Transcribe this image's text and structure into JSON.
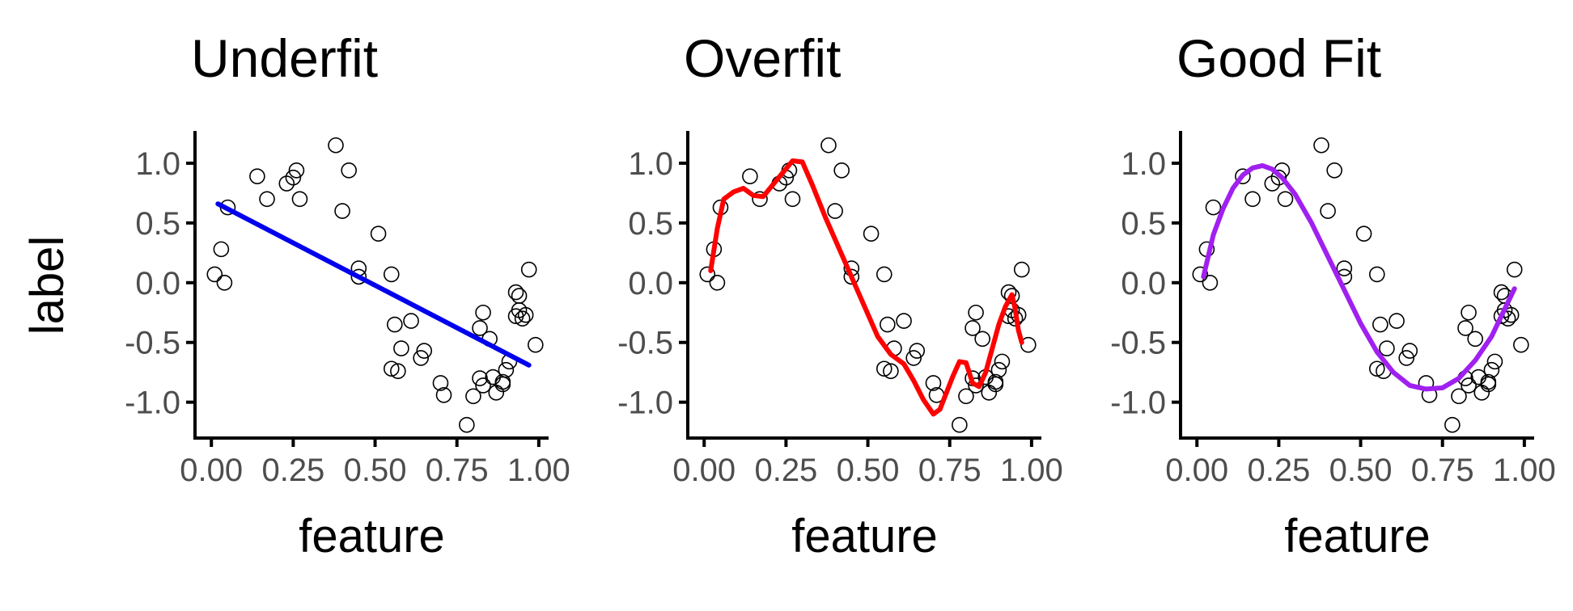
{
  "chart_data": [
    {
      "type": "scatter",
      "title": "Underfit",
      "xlabel": "feature",
      "ylabel": "label",
      "xlim": [
        -0.05,
        1.03
      ],
      "ylim": [
        -1.3,
        1.27
      ],
      "xticks": [
        0,
        0.25,
        0.5,
        0.75,
        1
      ],
      "xtick_labels": [
        "0.00",
        "0.25",
        "0.50",
        "0.75",
        "1.00"
      ],
      "yticks": [
        -1,
        -0.5,
        0,
        0.5,
        1
      ],
      "ytick_labels": [
        "-1.0",
        "-0.5",
        "0.0",
        "0.5",
        "1.0"
      ],
      "grid": false,
      "points": {
        "x": [
          0.01,
          0.03,
          0.04,
          0.05,
          0.14,
          0.17,
          0.23,
          0.25,
          0.26,
          0.27,
          0.38,
          0.4,
          0.42,
          0.45,
          0.45,
          0.51,
          0.55,
          0.55,
          0.56,
          0.57,
          0.58,
          0.61,
          0.64,
          0.65,
          0.7,
          0.71,
          0.78,
          0.8,
          0.82,
          0.82,
          0.83,
          0.83,
          0.85,
          0.86,
          0.87,
          0.89,
          0.89,
          0.9,
          0.91,
          0.93,
          0.93,
          0.94,
          0.94,
          0.95,
          0.96,
          0.97,
          0.99
        ],
        "y": [
          0.07,
          0.28,
          0.0,
          0.63,
          0.89,
          0.7,
          0.83,
          0.88,
          0.94,
          0.7,
          1.15,
          0.6,
          0.94,
          0.05,
          0.12,
          0.41,
          0.07,
          -0.72,
          -0.35,
          -0.74,
          -0.55,
          -0.32,
          -0.63,
          -0.57,
          -0.84,
          -0.94,
          -1.19,
          -0.95,
          -0.38,
          -0.8,
          -0.86,
          -0.25,
          -0.47,
          -0.79,
          -0.92,
          -0.85,
          -0.83,
          -0.73,
          -0.66,
          -0.08,
          -0.28,
          -0.11,
          -0.23,
          -0.3,
          -0.27,
          0.11,
          -0.52
        ]
      },
      "fit": {
        "color": "#0000ee",
        "x": [
          0.02,
          0.97
        ],
        "y": [
          0.66,
          -0.69
        ]
      }
    },
    {
      "type": "scatter",
      "title": "Overfit",
      "xlabel": "feature",
      "ylabel": "",
      "xlim": [
        -0.05,
        1.03
      ],
      "ylim": [
        -1.3,
        1.27
      ],
      "xticks": [
        0,
        0.25,
        0.5,
        0.75,
        1
      ],
      "xtick_labels": [
        "0.00",
        "0.25",
        "0.50",
        "0.75",
        "1.00"
      ],
      "yticks": [
        -1,
        -0.5,
        0,
        0.5,
        1
      ],
      "ytick_labels": [
        "-1.0",
        "-0.5",
        "0.0",
        "0.5",
        "1.0"
      ],
      "grid": false,
      "points": {
        "x": [
          0.01,
          0.03,
          0.04,
          0.05,
          0.14,
          0.17,
          0.23,
          0.25,
          0.26,
          0.27,
          0.38,
          0.4,
          0.42,
          0.45,
          0.45,
          0.51,
          0.55,
          0.55,
          0.56,
          0.57,
          0.58,
          0.61,
          0.64,
          0.65,
          0.7,
          0.71,
          0.78,
          0.8,
          0.82,
          0.82,
          0.83,
          0.83,
          0.85,
          0.86,
          0.87,
          0.89,
          0.89,
          0.9,
          0.91,
          0.93,
          0.93,
          0.94,
          0.94,
          0.95,
          0.96,
          0.97,
          0.99
        ],
        "y": [
          0.07,
          0.28,
          0.0,
          0.63,
          0.89,
          0.7,
          0.83,
          0.88,
          0.94,
          0.7,
          1.15,
          0.6,
          0.94,
          0.05,
          0.12,
          0.41,
          0.07,
          -0.72,
          -0.35,
          -0.74,
          -0.55,
          -0.32,
          -0.63,
          -0.57,
          -0.84,
          -0.94,
          -1.19,
          -0.95,
          -0.38,
          -0.8,
          -0.86,
          -0.25,
          -0.47,
          -0.79,
          -0.92,
          -0.85,
          -0.83,
          -0.73,
          -0.66,
          -0.08,
          -0.28,
          -0.11,
          -0.23,
          -0.3,
          -0.27,
          0.11,
          -0.52
        ]
      },
      "fit": {
        "color": "#ff0000",
        "x": [
          0.02,
          0.04,
          0.06,
          0.09,
          0.12,
          0.15,
          0.18,
          0.21,
          0.24,
          0.27,
          0.3,
          0.33,
          0.37,
          0.41,
          0.45,
          0.49,
          0.53,
          0.57,
          0.61,
          0.64,
          0.67,
          0.7,
          0.72,
          0.74,
          0.76,
          0.78,
          0.8,
          0.82,
          0.84,
          0.86,
          0.88,
          0.9,
          0.92,
          0.94,
          0.95,
          0.96,
          0.97
        ],
        "y": [
          0.1,
          0.45,
          0.7,
          0.76,
          0.79,
          0.73,
          0.72,
          0.82,
          0.92,
          1.02,
          1.01,
          0.82,
          0.55,
          0.3,
          0.05,
          -0.2,
          -0.45,
          -0.6,
          -0.68,
          -0.82,
          -0.98,
          -1.1,
          -1.06,
          -0.92,
          -0.78,
          -0.66,
          -0.67,
          -0.84,
          -0.87,
          -0.75,
          -0.55,
          -0.35,
          -0.2,
          -0.1,
          -0.22,
          -0.4,
          -0.5
        ]
      }
    },
    {
      "type": "scatter",
      "title": "Good Fit",
      "xlabel": "feature",
      "ylabel": "",
      "xlim": [
        -0.05,
        1.03
      ],
      "ylim": [
        -1.3,
        1.27
      ],
      "xticks": [
        0,
        0.25,
        0.5,
        0.75,
        1
      ],
      "xtick_labels": [
        "0.00",
        "0.25",
        "0.50",
        "0.75",
        "1.00"
      ],
      "yticks": [
        -1,
        -0.5,
        0,
        0.5,
        1
      ],
      "ytick_labels": [
        "-1.0",
        "-0.5",
        "0.0",
        "0.5",
        "1.0"
      ],
      "grid": false,
      "points": {
        "x": [
          0.01,
          0.03,
          0.04,
          0.05,
          0.14,
          0.17,
          0.23,
          0.25,
          0.26,
          0.27,
          0.38,
          0.4,
          0.42,
          0.45,
          0.45,
          0.51,
          0.55,
          0.55,
          0.56,
          0.57,
          0.58,
          0.61,
          0.64,
          0.65,
          0.7,
          0.71,
          0.78,
          0.8,
          0.82,
          0.82,
          0.83,
          0.83,
          0.85,
          0.86,
          0.87,
          0.89,
          0.89,
          0.9,
          0.91,
          0.93,
          0.93,
          0.94,
          0.94,
          0.95,
          0.96,
          0.97,
          0.99
        ],
        "y": [
          0.07,
          0.28,
          0.0,
          0.63,
          0.89,
          0.7,
          0.83,
          0.88,
          0.94,
          0.7,
          1.15,
          0.6,
          0.94,
          0.05,
          0.12,
          0.41,
          0.07,
          -0.72,
          -0.35,
          -0.74,
          -0.55,
          -0.32,
          -0.63,
          -0.57,
          -0.84,
          -0.94,
          -1.19,
          -0.95,
          -0.38,
          -0.8,
          -0.86,
          -0.25,
          -0.47,
          -0.79,
          -0.92,
          -0.85,
          -0.83,
          -0.73,
          -0.66,
          -0.08,
          -0.28,
          -0.11,
          -0.23,
          -0.3,
          -0.27,
          0.11,
          -0.52
        ]
      },
      "fit": {
        "color": "#a020f0",
        "x": [
          0.02,
          0.05,
          0.08,
          0.11,
          0.14,
          0.17,
          0.2,
          0.23,
          0.26,
          0.3,
          0.35,
          0.4,
          0.45,
          0.5,
          0.55,
          0.6,
          0.65,
          0.7,
          0.75,
          0.8,
          0.85,
          0.9,
          0.94,
          0.97
        ],
        "y": [
          0.05,
          0.4,
          0.62,
          0.79,
          0.9,
          0.96,
          0.98,
          0.95,
          0.88,
          0.74,
          0.5,
          0.22,
          -0.06,
          -0.34,
          -0.58,
          -0.75,
          -0.86,
          -0.89,
          -0.88,
          -0.8,
          -0.65,
          -0.45,
          -0.22,
          -0.05
        ]
      }
    }
  ]
}
